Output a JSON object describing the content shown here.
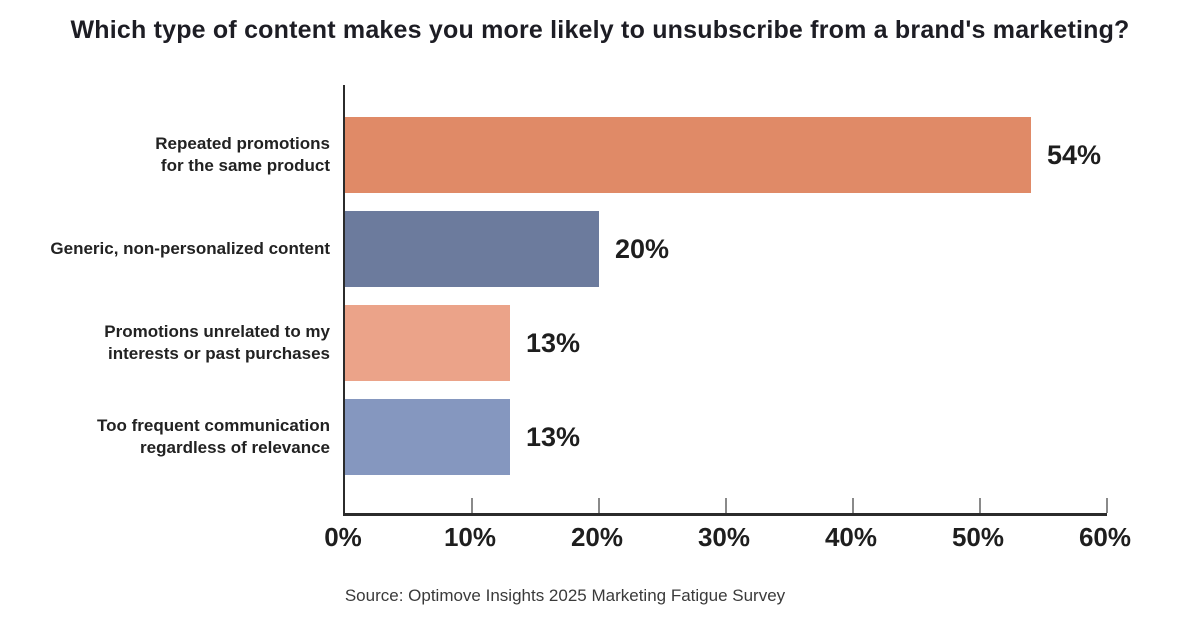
{
  "title": "Which type of content makes you more likely to unsubscribe from a brand's marketing?",
  "source": "Source: Optimove Insights 2025 Marketing Fatigue Survey",
  "chart_data": {
    "type": "bar",
    "orientation": "horizontal",
    "title": "Which type of content makes you more likely to unsubscribe from a brand's marketing?",
    "categories": [
      "Repeated promotions\nfor the same product",
      "Generic, non-personalized content",
      "Promotions unrelated to my\ninterests or past purchases",
      "Too frequent communication\nregardless of relevance"
    ],
    "values": [
      54,
      20,
      13,
      13
    ],
    "value_labels": [
      "54%",
      "20%",
      "13%",
      "13%"
    ],
    "bar_colors": [
      "#E08A67",
      "#6C7B9D",
      "#EBA389",
      "#8597BF"
    ],
    "xlabel": "",
    "ylabel": "",
    "xlim": [
      0,
      60
    ],
    "x_tick_values": [
      0,
      10,
      20,
      30,
      40,
      50,
      60
    ],
    "x_tick_labels": [
      "0%",
      "10%",
      "20%",
      "30%",
      "40%",
      "50%",
      "60%"
    ],
    "grid": false,
    "legend": null,
    "source": "Source: Optimove Insights 2025 Marketing Fatigue Survey"
  },
  "colors": {
    "background": "#FFFFFF",
    "axis": "#2B2B2B",
    "tick": "#8A8A8A",
    "title_text": "#1D1D24",
    "label_text": "#222222",
    "source_text": "#3A3A3A"
  }
}
